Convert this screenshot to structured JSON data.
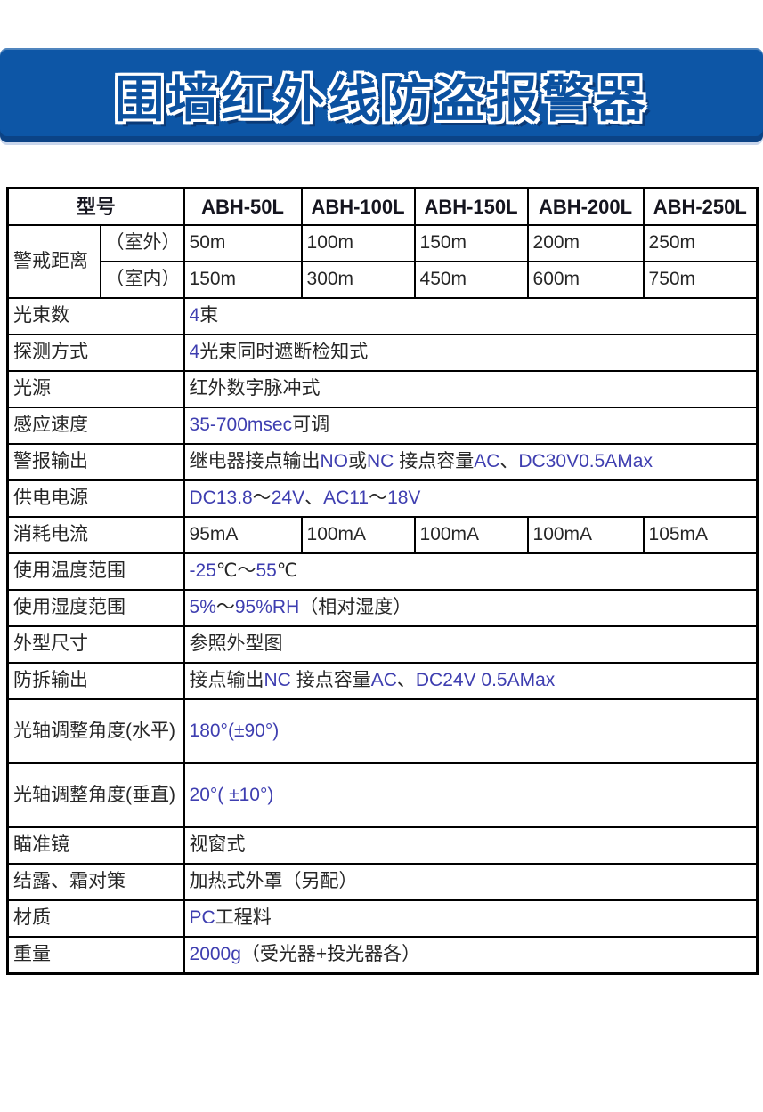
{
  "colors": {
    "banner_bg": "#0d56a6",
    "banner_shadow": "#0a3a78",
    "table_border": "#000000",
    "text_cjk": "#262626",
    "text_latin": "#3e3eb0"
  },
  "banner": {
    "title": "围墙红外线防盗报警器"
  },
  "table": {
    "header": {
      "model_label": "型号",
      "models": [
        "ABH-50L",
        "ABH-100L",
        "ABH-150L",
        "ABH-200L",
        "ABH-250L"
      ]
    },
    "distance": {
      "label": "警戒距离",
      "outdoor": {
        "sub": "（室外）",
        "values": [
          "50m",
          "100m",
          "150m",
          "200m",
          "250m"
        ]
      },
      "indoor": {
        "sub": "（室内）",
        "values": [
          "150m",
          "300m",
          "450m",
          "600m",
          "750m"
        ]
      }
    },
    "specs": [
      {
        "label": "光束数",
        "parts": [
          {
            "t": "4",
            "k": "lat"
          },
          {
            "t": "束",
            "k": "cjk"
          }
        ]
      },
      {
        "label": "探测方式",
        "parts": [
          {
            "t": "4",
            "k": "lat"
          },
          {
            "t": "光束同时遮断检知式",
            "k": "cjk"
          }
        ]
      },
      {
        "label": "光源",
        "parts": [
          {
            "t": "红外数字脉冲式",
            "k": "cjk"
          }
        ]
      },
      {
        "label": "感应速度",
        "parts": [
          {
            "t": "35-700msec",
            "k": "lat"
          },
          {
            "t": "可调",
            "k": "cjk"
          }
        ]
      },
      {
        "label": "警报输出",
        "parts": [
          {
            "t": "继电器接点输出",
            "k": "cjk"
          },
          {
            "t": "NO",
            "k": "lat"
          },
          {
            "t": "或",
            "k": "cjk"
          },
          {
            "t": "NC",
            "k": "lat"
          },
          {
            "t": " 接点容量",
            "k": "cjk"
          },
          {
            "t": "AC",
            "k": "lat"
          },
          {
            "t": "、",
            "k": "cjk"
          },
          {
            "t": "DC30V0.5AMax",
            "k": "lat"
          }
        ]
      },
      {
        "label": "供电电源",
        "parts": [
          {
            "t": "DC13.8",
            "k": "lat"
          },
          {
            "t": "～",
            "k": "cjk"
          },
          {
            "t": "24V",
            "k": "lat"
          },
          {
            "t": "、",
            "k": "cjk"
          },
          {
            "t": "AC11",
            "k": "lat"
          },
          {
            "t": "～",
            "k": "cjk"
          },
          {
            "t": "18V",
            "k": "lat"
          }
        ]
      }
    ],
    "current_row": {
      "label": "消耗电流",
      "values": [
        "95mA",
        "100mA",
        "100mA",
        "100mA",
        "105mA"
      ]
    },
    "specs2": [
      {
        "label": "使用温度范围",
        "parts": [
          {
            "t": "-25",
            "k": "lat"
          },
          {
            "t": "℃～",
            "k": "cjk"
          },
          {
            "t": "55",
            "k": "lat"
          },
          {
            "t": "℃",
            "k": "cjk"
          }
        ]
      },
      {
        "label": "使用湿度范围",
        "parts": [
          {
            "t": "5%",
            "k": "lat"
          },
          {
            "t": "～",
            "k": "cjk"
          },
          {
            "t": "95%RH",
            "k": "lat"
          },
          {
            "t": "（相对湿度）",
            "k": "cjk"
          }
        ]
      },
      {
        "label": "外型尺寸",
        "parts": [
          {
            "t": "参照外型图",
            "k": "cjk"
          }
        ]
      },
      {
        "label": "防拆输出",
        "parts": [
          {
            "t": "接点输出",
            "k": "cjk"
          },
          {
            "t": "NC",
            "k": "lat"
          },
          {
            "t": " 接点容量",
            "k": "cjk"
          },
          {
            "t": "AC",
            "k": "lat"
          },
          {
            "t": "、",
            "k": "cjk"
          },
          {
            "t": "DC24V 0.5AMax",
            "k": "lat"
          }
        ]
      },
      {
        "label": "光轴调整角度(水平)",
        "parts": [
          {
            "t": "180°(±90°)",
            "k": "lat"
          }
        ],
        "tall": true
      },
      {
        "label": "光轴调整角度(垂直)",
        "parts": [
          {
            "t": "20°( ±10°)",
            "k": "lat"
          }
        ],
        "tall": true
      },
      {
        "label": "瞄准镜",
        "parts": [
          {
            "t": "视窗式",
            "k": "cjk"
          }
        ]
      },
      {
        "label": "结露、霜对策",
        "parts": [
          {
            "t": "加热式外罩（另配）",
            "k": "cjk"
          }
        ]
      },
      {
        "label": "材质",
        "parts": [
          {
            "t": "PC",
            "k": "lat"
          },
          {
            "t": "工程料",
            "k": "cjk"
          }
        ]
      },
      {
        "label": "重量",
        "parts": [
          {
            "t": "2000g",
            "k": "lat"
          },
          {
            "t": "（受光器+投光器各）",
            "k": "cjk"
          }
        ]
      }
    ]
  }
}
